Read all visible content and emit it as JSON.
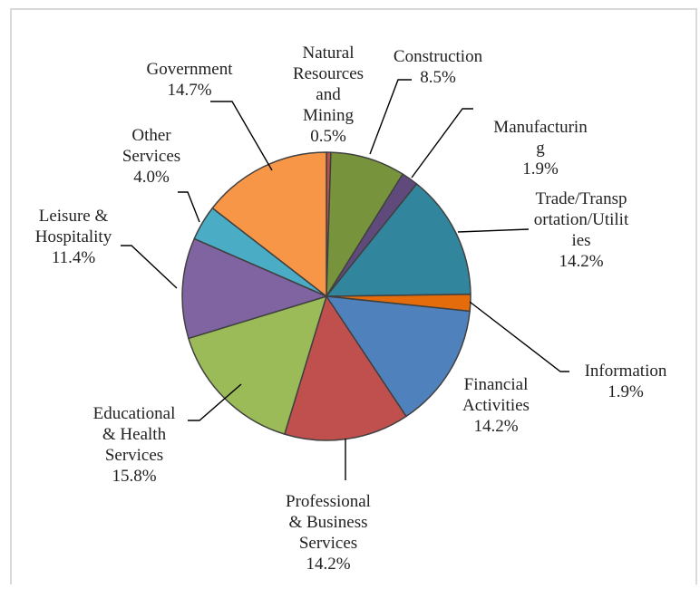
{
  "chart_data": {
    "type": "pie",
    "title": "",
    "slices": [
      {
        "label_lines": [
          "Natural",
          "Resources",
          "and",
          "Mining"
        ],
        "pct_text": "0.5%",
        "value": 0.5,
        "color": "#C0504D"
      },
      {
        "label_lines": [
          "Construction"
        ],
        "pct_text": "8.5%",
        "value": 8.5,
        "color": "#77933C"
      },
      {
        "label_lines": [
          "Manufacturin",
          "g"
        ],
        "pct_text": "1.9%",
        "value": 1.9,
        "color": "#604A7B"
      },
      {
        "label_lines": [
          "Trade/Transp",
          "ortation/Utilit",
          "ies"
        ],
        "pct_text": "14.2%",
        "value": 14.2,
        "color": "#31859C"
      },
      {
        "label_lines": [
          "Information"
        ],
        "pct_text": "1.9%",
        "value": 1.9,
        "color": "#E46C0A"
      },
      {
        "label_lines": [
          "Financial",
          "Activities"
        ],
        "pct_text": "14.2%",
        "value": 14.2,
        "color": "#4F81BD"
      },
      {
        "label_lines": [
          "Professional",
          "& Business",
          "Services"
        ],
        "pct_text": "14.2%",
        "value": 14.2,
        "color": "#C0504D"
      },
      {
        "label_lines": [
          "Educational",
          "& Health",
          "Services"
        ],
        "pct_text": "15.8%",
        "value": 15.8,
        "color": "#9BBB59"
      },
      {
        "label_lines": [
          "Leisure &",
          "Hospitality"
        ],
        "pct_text": "11.4%",
        "value": 11.4,
        "color": "#8064A2"
      },
      {
        "label_lines": [
          "Other",
          "Services"
        ],
        "pct_text": "4.0%",
        "value": 4.0,
        "color": "#4BACC6"
      },
      {
        "label_lines": [
          "Government"
        ],
        "pct_text": "14.7%",
        "value": 14.7,
        "color": "#F79646"
      }
    ]
  }
}
